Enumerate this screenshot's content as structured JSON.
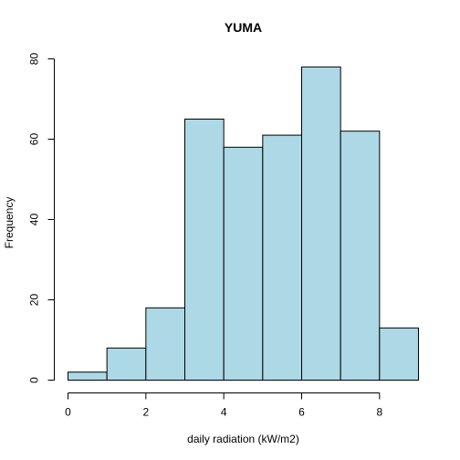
{
  "chart_data": {
    "type": "bar",
    "title": "YUMA",
    "xlabel": "daily radiation (kW/m2)",
    "ylabel": "Frequency",
    "bins": [
      {
        "start": 0,
        "end": 1,
        "value": 2
      },
      {
        "start": 1,
        "end": 2,
        "value": 8
      },
      {
        "start": 2,
        "end": 3,
        "value": 18
      },
      {
        "start": 3,
        "end": 4,
        "value": 65
      },
      {
        "start": 4,
        "end": 5,
        "value": 58
      },
      {
        "start": 5,
        "end": 6,
        "value": 61
      },
      {
        "start": 6,
        "end": 7,
        "value": 78
      },
      {
        "start": 7,
        "end": 8,
        "value": 62
      },
      {
        "start": 8,
        "end": 9,
        "value": 13
      }
    ],
    "xlim": [
      0,
      9
    ],
    "ylim": [
      0,
      80
    ],
    "xticks": [
      0,
      2,
      4,
      6,
      8
    ],
    "yticks": [
      0,
      20,
      40,
      60,
      80
    ],
    "bar_color": "#add8e6",
    "border_color": "#000000",
    "grid": false
  }
}
